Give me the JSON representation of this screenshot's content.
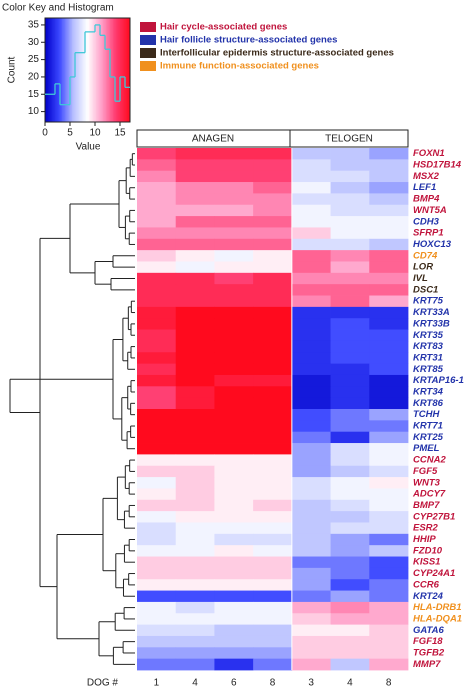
{
  "chart_data": {
    "type": "heatmap",
    "colorkey": {
      "title": "Color Key and Histogram",
      "xlabel": "Value",
      "ylabel": "Count",
      "xlim": [
        0,
        17
      ],
      "xticks": [
        0,
        5,
        10,
        15
      ],
      "ylim": [
        7,
        37
      ],
      "yticks": [
        10,
        15,
        20,
        25,
        30,
        35
      ],
      "bins": [
        0,
        1,
        2,
        3,
        4,
        5,
        6,
        7,
        8,
        9,
        10,
        11,
        12,
        13,
        14,
        15,
        16,
        17
      ],
      "counts": [
        15,
        15,
        18,
        12,
        12,
        20,
        27,
        27,
        33,
        33,
        35,
        32,
        28,
        20,
        13,
        20,
        17
      ],
      "line_color": "#40c8d8"
    },
    "zlim": [
      0,
      17
    ],
    "colors": [
      "#0000c8",
      "#3a46ff",
      "#b8c0ff",
      "#ffffff",
      "#ff9ec8",
      "#ff3a6e",
      "#ff0a1e"
    ],
    "legend": [
      {
        "label": "Hair cycle-associated genes",
        "color": "#c0143c"
      },
      {
        "label": "Hair follicle structure-associated genes",
        "color": "#2233aa"
      },
      {
        "label": "Interfollicular epidermis structure-associated genes",
        "color": "#3b2a1a"
      },
      {
        "label": "Immune function-associated genes",
        "color": "#f0901e"
      }
    ],
    "column_groups": [
      "ANAGEN",
      "TELOGEN"
    ],
    "column_axis_label": "DOG #",
    "columns": [
      "1",
      "4",
      "6",
      "8",
      "3",
      "4",
      "8"
    ],
    "rows": [
      "FOXN1",
      "HSD17B14",
      "MSX2",
      "LEF1",
      "BMP4",
      "WNT5A",
      "CDH3",
      "SFRP1",
      "HOXC13",
      "CD74",
      "LOR",
      "IVL",
      "DSC1",
      "KRT75",
      "KRT33A",
      "KRT33B",
      "KRT35",
      "KRT83",
      "KRT31",
      "KRT85",
      "KRTAP16-1",
      "KRT34",
      "KRT86",
      "TCHH",
      "KRT71",
      "KRT25",
      "PMEL",
      "CCNA2",
      "FGF5",
      "WNT3",
      "ADCY7",
      "BMP7",
      "CYP27B1",
      "ESR2",
      "HHIP",
      "FZD10",
      "KISS1",
      "CYP24A1",
      "CCR6",
      "KRT24",
      "HLA-DRB1",
      "HLA-DQA1",
      "GATA6",
      "FGF18",
      "TGFB2",
      "MMP7"
    ],
    "row_label_colors": [
      "#c0143c",
      "#c0143c",
      "#c0143c",
      "#2233aa",
      "#c0143c",
      "#c0143c",
      "#2233aa",
      "#c0143c",
      "#2233aa",
      "#f0901e",
      "#3b2a1a",
      "#3b2a1a",
      "#3b2a1a",
      "#2233aa",
      "#2233aa",
      "#2233aa",
      "#2233aa",
      "#2233aa",
      "#2233aa",
      "#2233aa",
      "#2233aa",
      "#2233aa",
      "#2233aa",
      "#2233aa",
      "#2233aa",
      "#2233aa",
      "#2233aa",
      "#c0143c",
      "#c0143c",
      "#c0143c",
      "#c0143c",
      "#c0143c",
      "#c0143c",
      "#c0143c",
      "#c0143c",
      "#c0143c",
      "#c0143c",
      "#c0143c",
      "#c0143c",
      "#2233aa",
      "#f0901e",
      "#f0901e",
      "#2233aa",
      "#c0143c",
      "#c0143c",
      "#c0143c"
    ],
    "values": [
      [
        14,
        15,
        15,
        15,
        6,
        6,
        5
      ],
      [
        13,
        14,
        14,
        14,
        7,
        6,
        6
      ],
      [
        12,
        14,
        14,
        14,
        7,
        7,
        6
      ],
      [
        11,
        12,
        12,
        13,
        8,
        6,
        5
      ],
      [
        11,
        12,
        12,
        12,
        7,
        7,
        6
      ],
      [
        11,
        11,
        11,
        12,
        8,
        7,
        7
      ],
      [
        11,
        13,
        13,
        13,
        8,
        8,
        8
      ],
      [
        12,
        12,
        12,
        12,
        10,
        8,
        8
      ],
      [
        13,
        13,
        13,
        13,
        7,
        7,
        6
      ],
      [
        10,
        9,
        8,
        9,
        13,
        12,
        13
      ],
      [
        9,
        8,
        9,
        9,
        13,
        11,
        13
      ],
      [
        15,
        15,
        14,
        15,
        12,
        12,
        12
      ],
      [
        15,
        15,
        15,
        15,
        13,
        13,
        13
      ],
      [
        15,
        15,
        15,
        15,
        12,
        13,
        11
      ],
      [
        16,
        17,
        17,
        17,
        2,
        2,
        2
      ],
      [
        16,
        17,
        17,
        17,
        2,
        3,
        2
      ],
      [
        15,
        17,
        17,
        17,
        2,
        3,
        3
      ],
      [
        15,
        17,
        17,
        17,
        2,
        3,
        3
      ],
      [
        16,
        17,
        17,
        17,
        2,
        3,
        3
      ],
      [
        15,
        17,
        17,
        17,
        2,
        2,
        3
      ],
      [
        16,
        17,
        16,
        16,
        1,
        2,
        1
      ],
      [
        14,
        16,
        17,
        17,
        1,
        2,
        1
      ],
      [
        14,
        16,
        17,
        17,
        1,
        2,
        1
      ],
      [
        17,
        17,
        17,
        17,
        3,
        4,
        5
      ],
      [
        17,
        17,
        17,
        17,
        3,
        4,
        4
      ],
      [
        17,
        17,
        17,
        17,
        4,
        2,
        5
      ],
      [
        17,
        17,
        17,
        17,
        5,
        7,
        8
      ],
      [
        9,
        9,
        9,
        9,
        5,
        7,
        8
      ],
      [
        10,
        10,
        9,
        9,
        5,
        6,
        7
      ],
      [
        8,
        10,
        9,
        9,
        7,
        8,
        9
      ],
      [
        9,
        10,
        9,
        9,
        7,
        8,
        8
      ],
      [
        10,
        10,
        9,
        10,
        6,
        7,
        8
      ],
      [
        8,
        9,
        9,
        9,
        6,
        6,
        7
      ],
      [
        7,
        8,
        8,
        8,
        6,
        7,
        7
      ],
      [
        7,
        8,
        7,
        7,
        6,
        5,
        4
      ],
      [
        8,
        8,
        9,
        8,
        6,
        5,
        6
      ],
      [
        10,
        10,
        10,
        10,
        4,
        4,
        3
      ],
      [
        10,
        10,
        10,
        10,
        5,
        4,
        3
      ],
      [
        9,
        9,
        9,
        9,
        5,
        3,
        4
      ],
      [
        3,
        3,
        3,
        3,
        4,
        5,
        4
      ],
      [
        8,
        7,
        8,
        8,
        11,
        12,
        11
      ],
      [
        8,
        8,
        8,
        8,
        10,
        11,
        11
      ],
      [
        7,
        7,
        6,
        6,
        9,
        9,
        10
      ],
      [
        6,
        6,
        6,
        6,
        10,
        10,
        10
      ],
      [
        5,
        5,
        5,
        5,
        10,
        10,
        10
      ],
      [
        4,
        4,
        2,
        4,
        11,
        6,
        11
      ]
    ]
  }
}
